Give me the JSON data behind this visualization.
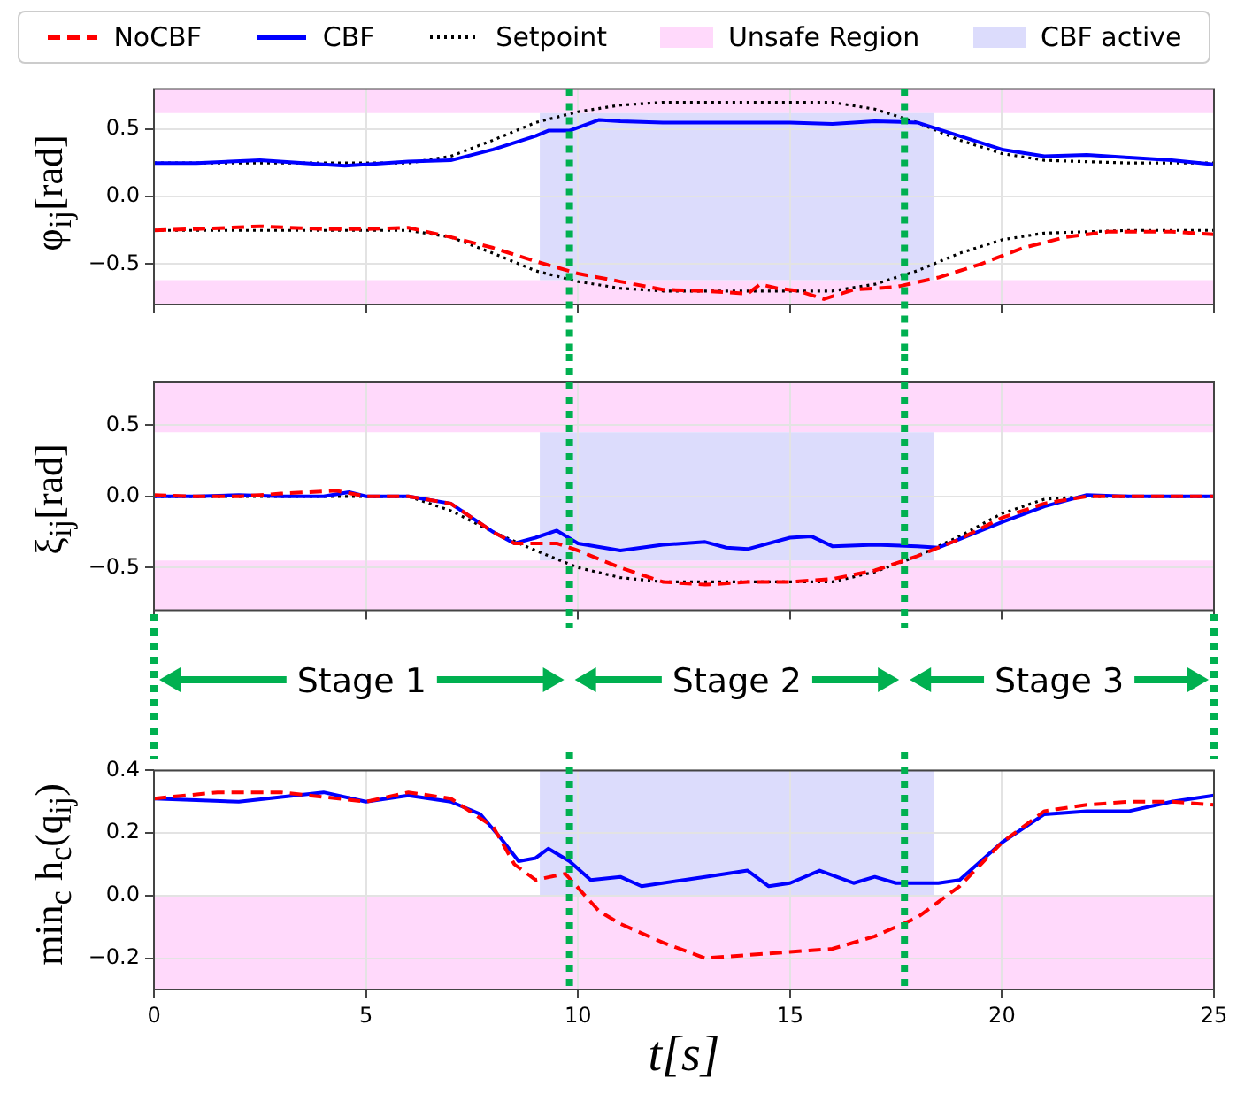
{
  "chart_data": [
    {
      "type": "line",
      "ylabel": "φ$_{ij}$[rad]",
      "xlim": [
        0,
        25
      ],
      "xticks": [
        0,
        5,
        10,
        15,
        20,
        25
      ],
      "ylim": [
        -0.8,
        0.8
      ],
      "yticks": [
        {
          "value": -0.5,
          "label": "−0.5"
        },
        {
          "value": 0,
          "label": "0.0"
        },
        0.5
      ],
      "grid": true,
      "legend": "top",
      "tick_labels": "y",
      "marker": "none",
      "series": [
        {
          "name": "NoCBF",
          "color": "#ff0000",
          "line_style": "dashed",
          "x": [
            0,
            1,
            2.5,
            4,
            5,
            6,
            7,
            8,
            9,
            10,
            11,
            12,
            13,
            14,
            14.3,
            14.7,
            15.2,
            15.8,
            16.5,
            17.5,
            18.5,
            19.5,
            20.5,
            21.5,
            22.5,
            24,
            25
          ],
          "values": [
            -0.25,
            -0.24,
            -0.22,
            -0.24,
            -0.24,
            -0.23,
            -0.3,
            -0.38,
            -0.48,
            -0.57,
            -0.63,
            -0.69,
            -0.7,
            -0.72,
            -0.65,
            -0.68,
            -0.7,
            -0.76,
            -0.69,
            -0.67,
            -0.6,
            -0.5,
            -0.38,
            -0.3,
            -0.26,
            -0.26,
            -0.28
          ]
        },
        {
          "name": "CBF",
          "color": "#0000ff",
          "line_style": "solid",
          "x": [
            0,
            1,
            2.5,
            4,
            4.5,
            5,
            6,
            7,
            8,
            9,
            9.3,
            9.8,
            10.5,
            11,
            12,
            13,
            14,
            15,
            16,
            17,
            18,
            19,
            20,
            21,
            22,
            23,
            24,
            25
          ],
          "values": [
            0.25,
            0.25,
            0.27,
            0.24,
            0.23,
            0.24,
            0.26,
            0.27,
            0.35,
            0.45,
            0.49,
            0.49,
            0.57,
            0.56,
            0.55,
            0.55,
            0.55,
            0.55,
            0.54,
            0.56,
            0.55,
            0.45,
            0.35,
            0.3,
            0.31,
            0.29,
            0.27,
            0.24
          ]
        },
        {
          "name": "Setpoint",
          "color": "#000000",
          "line_style": "dotted",
          "x": [
            0,
            2,
            4,
            5,
            6,
            7,
            8,
            9,
            10,
            11,
            12,
            14,
            16,
            17,
            18,
            19,
            20,
            21,
            22,
            23,
            25
          ],
          "values": [
            0.25,
            0.25,
            0.25,
            0.25,
            0.25,
            0.3,
            0.42,
            0.55,
            0.63,
            0.68,
            0.7,
            0.7,
            0.7,
            0.65,
            0.55,
            0.42,
            0.32,
            0.27,
            0.26,
            0.25,
            0.25
          ]
        },
        {
          "color": "#000000",
          "line_style": "dotted",
          "x": [
            0,
            2,
            4,
            5,
            6,
            7,
            8,
            9,
            10,
            11,
            12,
            14,
            16,
            17,
            18,
            19,
            20,
            21,
            22,
            23,
            25
          ],
          "values": [
            -0.25,
            -0.25,
            -0.25,
            -0.25,
            -0.25,
            -0.3,
            -0.42,
            -0.55,
            -0.63,
            -0.68,
            -0.7,
            -0.7,
            -0.7,
            -0.65,
            -0.55,
            -0.42,
            -0.32,
            -0.27,
            -0.26,
            -0.25,
            -0.25
          ]
        }
      ],
      "bands": [
        {
          "axis": "y",
          "from": 0.62,
          "to": 0.8,
          "label": "Unsafe Region",
          "color": "#ffd9fb"
        },
        {
          "axis": "y",
          "from": -0.8,
          "to": -0.62,
          "color": "#ffd9fb"
        },
        {
          "axis": "x",
          "from": 9.1,
          "to": 18.4,
          "label": "CBF active",
          "color": "#dcdcfc"
        }
      ],
      "ref_lines": [
        {
          "axis": "x",
          "value": 9.8,
          "color": "#00b050",
          "line_style": "dotted"
        },
        {
          "axis": "x",
          "value": 17.7,
          "color": "#00b050",
          "line_style": "dotted"
        }
      ]
    },
    {
      "type": "line",
      "ylabel": "ξ$_{ij}$[rad]",
      "xlim": [
        0,
        25
      ],
      "xticks": [
        0,
        5,
        10,
        15,
        20,
        25
      ],
      "ylim": [
        -0.8,
        0.8
      ],
      "yticks": [
        {
          "value": -0.5,
          "label": "−0.5"
        },
        {
          "value": 0,
          "label": "0.0"
        },
        0.5
      ],
      "grid": true,
      "tick_labels": "y",
      "marker": "none",
      "series": [
        {
          "color": "#ff0000",
          "line_style": "dashed",
          "x": [
            0,
            1,
            2,
            3,
            4.3,
            5,
            6,
            7,
            8,
            8.5,
            9.5,
            10,
            11,
            12,
            13,
            14,
            15,
            16,
            17,
            18,
            19,
            20,
            21,
            22,
            23,
            25
          ],
          "values": [
            0.01,
            0,
            0,
            0.02,
            0.04,
            0,
            0,
            -0.05,
            -0.25,
            -0.33,
            -0.33,
            -0.38,
            -0.5,
            -0.6,
            -0.62,
            -0.6,
            -0.6,
            -0.58,
            -0.52,
            -0.42,
            -0.3,
            -0.15,
            -0.05,
            0,
            0,
            0
          ]
        },
        {
          "color": "#0000ff",
          "line_style": "solid",
          "x": [
            0,
            1,
            2,
            3,
            4,
            4.6,
            5,
            6,
            7,
            8,
            8.5,
            9,
            9.5,
            10,
            11,
            12,
            13,
            13.5,
            14,
            15,
            15.5,
            16,
            17,
            18,
            18.5,
            19,
            20,
            21,
            22,
            23,
            25
          ],
          "values": [
            0,
            0,
            0.01,
            0,
            0,
            0.03,
            0,
            0,
            -0.05,
            -0.25,
            -0.33,
            -0.29,
            -0.24,
            -0.33,
            -0.38,
            -0.34,
            -0.32,
            -0.36,
            -0.37,
            -0.29,
            -0.28,
            -0.35,
            -0.34,
            -0.35,
            -0.36,
            -0.3,
            -0.18,
            -0.07,
            0.01,
            0,
            0
          ]
        },
        {
          "color": "#000000",
          "line_style": "dotted",
          "x": [
            0,
            2,
            4,
            6,
            7,
            8,
            9,
            10,
            11,
            12,
            14,
            16,
            17,
            18,
            19,
            20,
            21,
            22,
            25
          ],
          "values": [
            0,
            0,
            0,
            0,
            -0.1,
            -0.25,
            -0.38,
            -0.5,
            -0.57,
            -0.6,
            -0.6,
            -0.6,
            -0.53,
            -0.42,
            -0.28,
            -0.12,
            -0.02,
            0,
            0
          ]
        }
      ],
      "bands": [
        {
          "axis": "y",
          "from": 0.45,
          "to": 0.8,
          "color": "#ffd9fb"
        },
        {
          "axis": "y",
          "from": -0.8,
          "to": -0.45,
          "color": "#ffd9fb"
        },
        {
          "axis": "x",
          "from": 9.1,
          "to": 18.4,
          "color": "#dcdcfc"
        }
      ],
      "ref_lines": [
        {
          "axis": "x",
          "value": 9.8,
          "color": "#00b050",
          "line_style": "dotted"
        },
        {
          "axis": "x",
          "value": 17.7,
          "color": "#00b050",
          "line_style": "dotted"
        }
      ]
    },
    {
      "type": "line",
      "xlabel": "t[s]",
      "ylabel": "min$_{c}$ h$_{c}$(q$_{ij}$)",
      "xlim": [
        0,
        25
      ],
      "xticks": [
        0,
        5,
        10,
        15,
        20,
        25
      ],
      "ylim": [
        -0.3,
        0.4
      ],
      "yticks": [
        {
          "value": -0.2,
          "label": "−0.2"
        },
        {
          "value": 0,
          "label": "0.0"
        },
        0.2,
        0.4
      ],
      "grid": true,
      "marker": "none",
      "annotations": [
        "Stage 1",
        "Stage 2",
        "Stage 3"
      ],
      "series": [
        {
          "color": "#ff0000",
          "line_style": "dashed",
          "x": [
            0,
            1.5,
            3,
            5,
            6,
            7,
            8,
            8.5,
            9,
            9.7,
            10.5,
            11,
            12,
            13,
            14,
            15,
            16,
            17,
            18,
            19,
            20,
            21,
            22,
            23,
            24,
            25
          ],
          "values": [
            0.31,
            0.33,
            0.33,
            0.3,
            0.33,
            0.31,
            0.22,
            0.1,
            0.05,
            0.07,
            -0.05,
            -0.09,
            -0.15,
            -0.2,
            -0.19,
            -0.18,
            -0.17,
            -0.13,
            -0.07,
            0.03,
            0.17,
            0.27,
            0.29,
            0.3,
            0.3,
            0.29
          ]
        },
        {
          "color": "#0000ff",
          "line_style": "solid",
          "x": [
            0,
            2,
            4,
            5,
            6,
            7,
            7.7,
            8.2,
            8.6,
            9,
            9.3,
            9.8,
            10.3,
            11,
            11.5,
            12.5,
            13,
            14,
            14.5,
            15,
            15.7,
            16.5,
            17,
            17.5,
            18.5,
            19,
            20,
            21,
            22,
            23,
            24,
            25
          ],
          "values": [
            0.31,
            0.3,
            0.33,
            0.3,
            0.32,
            0.3,
            0.26,
            0.18,
            0.11,
            0.12,
            0.15,
            0.11,
            0.05,
            0.06,
            0.03,
            0.05,
            0.06,
            0.08,
            0.03,
            0.04,
            0.08,
            0.04,
            0.06,
            0.04,
            0.04,
            0.05,
            0.17,
            0.26,
            0.27,
            0.27,
            0.3,
            0.32
          ]
        }
      ],
      "bands": [
        {
          "axis": "y",
          "from": -0.3,
          "to": 0,
          "color": "#ffd9fb"
        },
        {
          "axis": "x",
          "from": 9.1,
          "to": 18.4,
          "color": "#dcdcfc"
        }
      ],
      "ref_lines": [
        {
          "axis": "x",
          "value": 9.8,
          "color": "#00b050",
          "line_style": "dotted"
        },
        {
          "axis": "x",
          "value": 17.7,
          "color": "#00b050",
          "line_style": "dotted"
        }
      ]
    }
  ]
}
